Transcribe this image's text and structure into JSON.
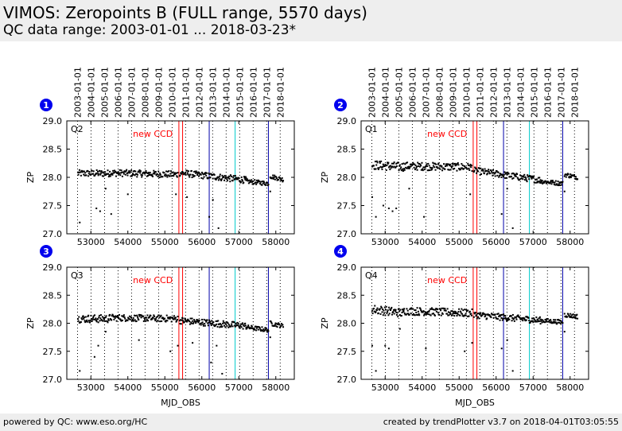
{
  "header": {
    "title": "VIMOS: Zeropoints B (FULL range, 5570 days)",
    "subtitle": "QC data range: 2003-01-01 ... 2018-03-23*"
  },
  "footer": {
    "left": "powered by QC: www.eso.org/HC",
    "right": "created by trendPlotter v3.7 on 2018-04-01T03:05:55"
  },
  "colors": {
    "background": "#ffffff",
    "header_bg": "#eeeeee",
    "marker": "#000000",
    "badge": "#0000ee",
    "new_ccd": "#ff0000",
    "event_blue": "#0000aa",
    "event_cyan": "#00cccc"
  },
  "chart_data": [
    {
      "type": "scatter",
      "panel": "1",
      "label": "Q2",
      "annotation": "new CCD",
      "ylabel": "ZP",
      "xlabel": "",
      "xlim": [
        52350,
        58500
      ],
      "ylim": [
        27.0,
        29.0
      ],
      "yticks": [
        "27.0",
        "27.5",
        "28.0",
        "28.5",
        "29.0"
      ],
      "xticks": [
        "53000",
        "54000",
        "55000",
        "56000",
        "57000",
        "58000"
      ],
      "series": [
        {
          "segments": [
            {
              "x": [
                52650,
                53500
              ],
              "y": [
                28.07,
                28.07
              ],
              "spread": 0.06
            },
            {
              "x": [
                53500,
                55350
              ],
              "y": [
                28.08,
                28.05
              ],
              "spread": 0.06
            },
            {
              "x": [
                55400,
                57200
              ],
              "y": [
                28.08,
                27.95
              ],
              "spread": 0.06
            },
            {
              "x": [
                57200,
                57800
              ],
              "y": [
                27.93,
                27.89
              ],
              "spread": 0.04
            },
            {
              "x": [
                57850,
                58200
              ],
              "y": [
                28.02,
                27.96
              ],
              "spread": 0.04
            }
          ],
          "outliers": [
            [
              52700,
              27.2
            ],
            [
              53150,
              27.45
            ],
            [
              53250,
              27.4
            ],
            [
              53400,
              27.8
            ],
            [
              53550,
              27.35
            ],
            [
              54000,
              27.7
            ],
            [
              55300,
              27.7
            ],
            [
              55600,
              27.65
            ],
            [
              56200,
              27.3
            ],
            [
              56300,
              27.6
            ],
            [
              56450,
              27.1
            ],
            [
              57850,
              27.75
            ]
          ]
        }
      ]
    },
    {
      "type": "scatter",
      "panel": "2",
      "label": "Q1",
      "annotation": "new CCD",
      "ylabel": "ZP",
      "xlabel": "",
      "xlim": [
        52350,
        58500
      ],
      "ylim": [
        27.0,
        29.0
      ],
      "yticks": [
        "27.0",
        "27.5",
        "28.0",
        "28.5",
        "29.0"
      ],
      "xticks": [
        "53000",
        "54000",
        "55000",
        "56000",
        "57000",
        "58000"
      ],
      "series": [
        {
          "segments": [
            {
              "x": [
                52650,
                53500
              ],
              "y": [
                28.22,
                28.18
              ],
              "spread": 0.08
            },
            {
              "x": [
                53500,
                55350
              ],
              "y": [
                28.2,
                28.18
              ],
              "spread": 0.07
            },
            {
              "x": [
                55400,
                57200
              ],
              "y": [
                28.12,
                27.95
              ],
              "spread": 0.06
            },
            {
              "x": [
                57200,
                57800
              ],
              "y": [
                27.93,
                27.89
              ],
              "spread": 0.04
            },
            {
              "x": [
                57850,
                58200
              ],
              "y": [
                28.05,
                28.0
              ],
              "spread": 0.04
            }
          ],
          "outliers": [
            [
              52650,
              27.65
            ],
            [
              52750,
              27.3
            ],
            [
              52950,
              27.5
            ],
            [
              53100,
              27.45
            ],
            [
              53200,
              27.4
            ],
            [
              53300,
              27.45
            ],
            [
              53650,
              27.8
            ],
            [
              54050,
              27.3
            ],
            [
              55300,
              27.7
            ],
            [
              56150,
              27.35
            ],
            [
              56300,
              27.8
            ],
            [
              56450,
              27.1
            ],
            [
              57850,
              27.75
            ]
          ]
        }
      ]
    },
    {
      "type": "scatter",
      "panel": "3",
      "label": "Q3",
      "annotation": "new CCD",
      "ylabel": "ZP",
      "xlabel": "MJD_OBS",
      "xlim": [
        52350,
        58500
      ],
      "ylim": [
        27.0,
        29.0
      ],
      "yticks": [
        "27.0",
        "27.5",
        "28.0",
        "28.5",
        "29.0"
      ],
      "xticks": [
        "53000",
        "54000",
        "55000",
        "56000",
        "57000",
        "58000"
      ],
      "series": [
        {
          "segments": [
            {
              "x": [
                52650,
                53500
              ],
              "y": [
                28.08,
                28.08
              ],
              "spread": 0.07
            },
            {
              "x": [
                53500,
                55350
              ],
              "y": [
                28.1,
                28.08
              ],
              "spread": 0.06
            },
            {
              "x": [
                55400,
                57200
              ],
              "y": [
                28.05,
                27.95
              ],
              "spread": 0.06
            },
            {
              "x": [
                57200,
                57800
              ],
              "y": [
                27.93,
                27.88
              ],
              "spread": 0.04
            },
            {
              "x": [
                57850,
                58200
              ],
              "y": [
                28.0,
                27.95
              ],
              "spread": 0.04
            }
          ],
          "outliers": [
            [
              52700,
              27.15
            ],
            [
              53100,
              27.4
            ],
            [
              53200,
              27.6
            ],
            [
              53400,
              27.85
            ],
            [
              54300,
              27.7
            ],
            [
              55150,
              27.5
            ],
            [
              55350,
              27.6
            ],
            [
              55750,
              27.65
            ],
            [
              56250,
              27.3
            ],
            [
              56400,
              27.6
            ],
            [
              56550,
              27.1
            ],
            [
              57850,
              27.75
            ]
          ]
        }
      ]
    },
    {
      "type": "scatter",
      "panel": "4",
      "label": "Q4",
      "annotation": "new CCD",
      "ylabel": "ZP",
      "xlabel": "MJD_OBS",
      "xlim": [
        52350,
        58500
      ],
      "ylim": [
        27.0,
        29.0
      ],
      "yticks": [
        "27.0",
        "27.5",
        "28.0",
        "28.5",
        "29.0"
      ],
      "xticks": [
        "53000",
        "54000",
        "55000",
        "56000",
        "57000",
        "58000"
      ],
      "series": [
        {
          "segments": [
            {
              "x": [
                52650,
                53500
              ],
              "y": [
                28.25,
                28.18
              ],
              "spread": 0.08
            },
            {
              "x": [
                53500,
                55350
              ],
              "y": [
                28.22,
                28.18
              ],
              "spread": 0.07
            },
            {
              "x": [
                55400,
                57200
              ],
              "y": [
                28.15,
                28.05
              ],
              "spread": 0.06
            },
            {
              "x": [
                57200,
                57800
              ],
              "y": [
                28.05,
                28.02
              ],
              "spread": 0.04
            },
            {
              "x": [
                57850,
                58200
              ],
              "y": [
                28.15,
                28.12
              ],
              "spread": 0.04
            }
          ],
          "outliers": [
            [
              52650,
              27.6
            ],
            [
              52750,
              27.15
            ],
            [
              53000,
              27.6
            ],
            [
              53100,
              27.55
            ],
            [
              53400,
              27.9
            ],
            [
              54100,
              27.55
            ],
            [
              55150,
              27.5
            ],
            [
              55350,
              27.65
            ],
            [
              56150,
              27.55
            ],
            [
              56300,
              27.7
            ],
            [
              56450,
              27.15
            ],
            [
              57850,
              27.85
            ]
          ]
        }
      ]
    }
  ],
  "shared": {
    "top_date_labels": [
      "2003-01-01",
      "2004-01-01",
      "2005-01-01",
      "2006-01-01",
      "2007-01-01",
      "2008-01-01",
      "2009-01-01",
      "2010-01-01",
      "2011-01-01",
      "2012-01-01",
      "2013-01-01",
      "2014-01-01",
      "2015-01-01",
      "2016-01-01",
      "2017-01-01",
      "2018-01-01"
    ],
    "year_mjds": [
      52640,
      53005,
      53371,
      53736,
      54101,
      54466,
      54832,
      55197,
      55562,
      55927,
      56293,
      56658,
      57023,
      57388,
      57754,
      58119
    ],
    "event_lines": [
      {
        "mjd": 55380,
        "kind": "new_ccd"
      },
      {
        "mjd": 55480,
        "kind": "new_ccd"
      },
      {
        "mjd": 56200,
        "kind": "blue"
      },
      {
        "mjd": 56900,
        "kind": "cyan"
      },
      {
        "mjd": 57800,
        "kind": "blue"
      }
    ]
  }
}
